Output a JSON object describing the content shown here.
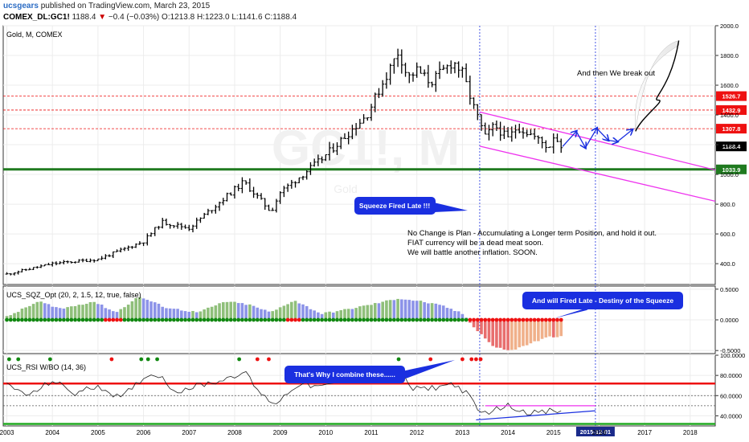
{
  "header": {
    "username": "ucsgears",
    "published_text": "published on TradingView.com, March 23, 2015",
    "symbol": "COMEX_DL:GC1!",
    "last": "1188.4",
    "change_arrow": "▼",
    "change": "−0.4 (−0.03%)",
    "ohlc": "O:1213.8 H:1223.0 L:1141.6 C:1188.4"
  },
  "colors": {
    "up_bar": "#8fbf7a",
    "down_bar": "#8c93e8",
    "neg_light": "#f0b08a",
    "neg_dark": "#e86e6e",
    "dot_green": "#118811",
    "dot_red": "#ee1111",
    "magenta": "#ee33ee",
    "blue": "#1a2fe0",
    "support": "#1f7a1f",
    "resistance": "#ee1111"
  },
  "chart_data": [
    {
      "type": "ohlc",
      "title": "Gold, M, COMEX",
      "watermark": "GC1!, M",
      "watermark_sub": "Gold",
      "x": [
        "2003",
        "2004",
        "2005",
        "2006",
        "2007",
        "2008",
        "2009",
        "2010",
        "2011",
        "2012",
        "2013",
        "2014",
        "2015",
        "2016",
        "2017",
        "2018"
      ],
      "xlim": [
        2002.92,
        2018.55
      ],
      "ylim": [
        260,
        2000
      ],
      "yticks": [
        "400.0",
        "600.0",
        "800.0",
        "1000.0",
        "1200.0",
        "1400.0",
        "1600.0",
        "1800.0",
        "2000.0"
      ],
      "ytick_values": [
        400,
        600,
        800,
        1000,
        1200,
        1400,
        1600,
        1800,
        2000
      ],
      "price_points": [
        [
          2003.0,
          330
        ],
        [
          2004.0,
          400
        ],
        [
          2005.0,
          430
        ],
        [
          2006.0,
          550
        ],
        [
          2006.4,
          680
        ],
        [
          2007.0,
          640
        ],
        [
          2008.0,
          900
        ],
        [
          2008.2,
          950
        ],
        [
          2008.8,
          750
        ],
        [
          2009.0,
          880
        ],
        [
          2009.9,
          1100
        ],
        [
          2010.9,
          1400
        ],
        [
          2011.6,
          1830
        ],
        [
          2011.8,
          1650
        ],
        [
          2012.0,
          1700
        ],
        [
          2012.3,
          1620
        ],
        [
          2012.8,
          1760
        ],
        [
          2013.0,
          1680
        ],
        [
          2013.25,
          1450
        ],
        [
          2013.5,
          1250
        ],
        [
          2013.7,
          1330
        ],
        [
          2014.0,
          1240
        ],
        [
          2014.2,
          1320
        ],
        [
          2014.5,
          1270
        ],
        [
          2014.9,
          1180
        ],
        [
          2015.0,
          1260
        ],
        [
          2015.2,
          1188
        ]
      ],
      "horizontal_levels": [
        {
          "value": 1526.7,
          "label": "1526.7",
          "color": "#ee1111"
        },
        {
          "value": 1432.9,
          "label": "1432.9",
          "color": "#ee1111"
        },
        {
          "value": 1307.8,
          "label": "1307.8",
          "color": "#ee1111"
        },
        {
          "value": 1188.4,
          "label": "1188.4",
          "color": "#000000"
        },
        {
          "value": 1033.9,
          "label": "1033.9",
          "color": "#1f7a1f"
        }
      ],
      "vertical_markers": [
        2013.38,
        2015.92
      ],
      "channel_upper": [
        [
          2013.38,
          1420
        ],
        [
          2018.55,
          1030
        ]
      ],
      "channel_lower": [
        [
          2013.38,
          1190
        ],
        [
          2018.55,
          820
        ]
      ],
      "projection": [
        [
          2015.2,
          1188
        ],
        [
          2015.5,
          1290
        ],
        [
          2015.7,
          1180
        ],
        [
          2015.95,
          1310
        ],
        [
          2016.2,
          1230
        ],
        [
          2016.4,
          1220
        ],
        [
          2016.8,
          1290
        ],
        [
          2017.3,
          1500
        ],
        [
          2017.75,
          1900
        ]
      ],
      "annotations": [
        {
          "text": "And then We break out",
          "kind": "text"
        },
        {
          "text": "Squeeze Fired Late !!!",
          "kind": "callout"
        },
        {
          "text": "No Change is Plan - Accumulating a Longer term Position, and hold it out.",
          "kind": "text"
        },
        {
          "text": "FIAT currency will be a dead meat soon.",
          "kind": "text"
        },
        {
          "text": "We will battle another inflation. SOON.",
          "kind": "text"
        }
      ]
    },
    {
      "type": "bar",
      "title": "UCS_SQZ_Opt (20, 2, 1.5, 12, true, false)",
      "ylim": [
        -0.55,
        0.55
      ],
      "yticks": [
        "0.5000",
        "0.0000",
        "-0.5000"
      ],
      "ytick_values": [
        0.5,
        0,
        -0.5
      ],
      "histogram_points": [
        [
          2003.0,
          0.05
        ],
        [
          2003.7,
          0.3
        ],
        [
          2004.2,
          0.18
        ],
        [
          2004.9,
          0.3
        ],
        [
          2005.4,
          0.12
        ],
        [
          2005.9,
          0.38
        ],
        [
          2006.5,
          0.2
        ],
        [
          2007.2,
          0.12
        ],
        [
          2007.8,
          0.3
        ],
        [
          2008.3,
          0.25
        ],
        [
          2008.8,
          0.12
        ],
        [
          2009.3,
          0.32
        ],
        [
          2009.9,
          0.1
        ],
        [
          2010.4,
          0.16
        ],
        [
          2011.0,
          0.25
        ],
        [
          2011.6,
          0.35
        ],
        [
          2012.1,
          0.3
        ],
        [
          2012.6,
          0.22
        ],
        [
          2013.0,
          0.1
        ],
        [
          2013.3,
          -0.15
        ],
        [
          2013.7,
          -0.45
        ],
        [
          2014.1,
          -0.5
        ],
        [
          2014.5,
          -0.38
        ],
        [
          2014.9,
          -0.28
        ],
        [
          2015.2,
          -0.26
        ]
      ],
      "squeeze_on_ranges": [
        [
          2005.1,
          2005.5
        ],
        [
          2009.15,
          2009.45
        ],
        [
          2013.1,
          2015.2
        ]
      ],
      "annotations": [
        {
          "text": "And will Fired Late - Destiny of the Squeeze",
          "kind": "callout"
        }
      ]
    },
    {
      "type": "line",
      "title": "UCS_RSI W/BO (14, 36)",
      "ylim": [
        30,
        100
      ],
      "yticks": [
        "100.0000",
        "80.0000",
        "60.0000",
        "40.0000"
      ],
      "ytick_values": [
        100,
        80,
        60,
        40
      ],
      "rsi_points": [
        [
          2003.0,
          70
        ],
        [
          2003.5,
          60
        ],
        [
          2004.0,
          75
        ],
        [
          2004.5,
          62
        ],
        [
          2005.0,
          70
        ],
        [
          2005.5,
          57
        ],
        [
          2006.0,
          78
        ],
        [
          2006.3,
          82
        ],
        [
          2006.7,
          64
        ],
        [
          2007.2,
          70
        ],
        [
          2007.7,
          75
        ],
        [
          2008.2,
          84
        ],
        [
          2008.6,
          60
        ],
        [
          2008.9,
          52
        ],
        [
          2009.4,
          72
        ],
        [
          2009.9,
          68
        ],
        [
          2010.4,
          75
        ],
        [
          2010.9,
          80
        ],
        [
          2011.4,
          82
        ],
        [
          2011.6,
          86
        ],
        [
          2011.9,
          66
        ],
        [
          2012.4,
          68
        ],
        [
          2012.8,
          72
        ],
        [
          2013.1,
          62
        ],
        [
          2013.4,
          42
        ],
        [
          2013.7,
          46
        ],
        [
          2014.0,
          50
        ],
        [
          2014.4,
          44
        ],
        [
          2014.8,
          43
        ],
        [
          2015.0,
          46
        ],
        [
          2015.2,
          42
        ]
      ],
      "upper_band": 72,
      "lower_band": 32,
      "signal_dots": [
        {
          "x": 2003.05,
          "color": "green"
        },
        {
          "x": 2003.25,
          "color": "green"
        },
        {
          "x": 2003.95,
          "color": "green"
        },
        {
          "x": 2005.3,
          "color": "red"
        },
        {
          "x": 2005.95,
          "color": "green"
        },
        {
          "x": 2006.1,
          "color": "green"
        },
        {
          "x": 2006.3,
          "color": "green"
        },
        {
          "x": 2008.1,
          "color": "green"
        },
        {
          "x": 2008.5,
          "color": "red"
        },
        {
          "x": 2008.75,
          "color": "red"
        },
        {
          "x": 2011.6,
          "color": "green"
        },
        {
          "x": 2012.3,
          "color": "red"
        },
        {
          "x": 2013.0,
          "color": "red"
        },
        {
          "x": 2013.2,
          "color": "red"
        },
        {
          "x": 2013.3,
          "color": "red"
        },
        {
          "x": 2013.4,
          "color": "red"
        }
      ],
      "trendlines": [
        {
          "from": [
            2013.5,
            50
          ],
          "to": [
            2015.92,
            50
          ],
          "color": "#ee33ee"
        },
        {
          "from": [
            2013.3,
            36
          ],
          "to": [
            2015.92,
            45
          ],
          "color": "#1a2fe0"
        }
      ],
      "marker_label": "2015-12-01",
      "annotations": [
        {
          "text": "That's Why I combine these......",
          "kind": "callout"
        }
      ]
    }
  ]
}
